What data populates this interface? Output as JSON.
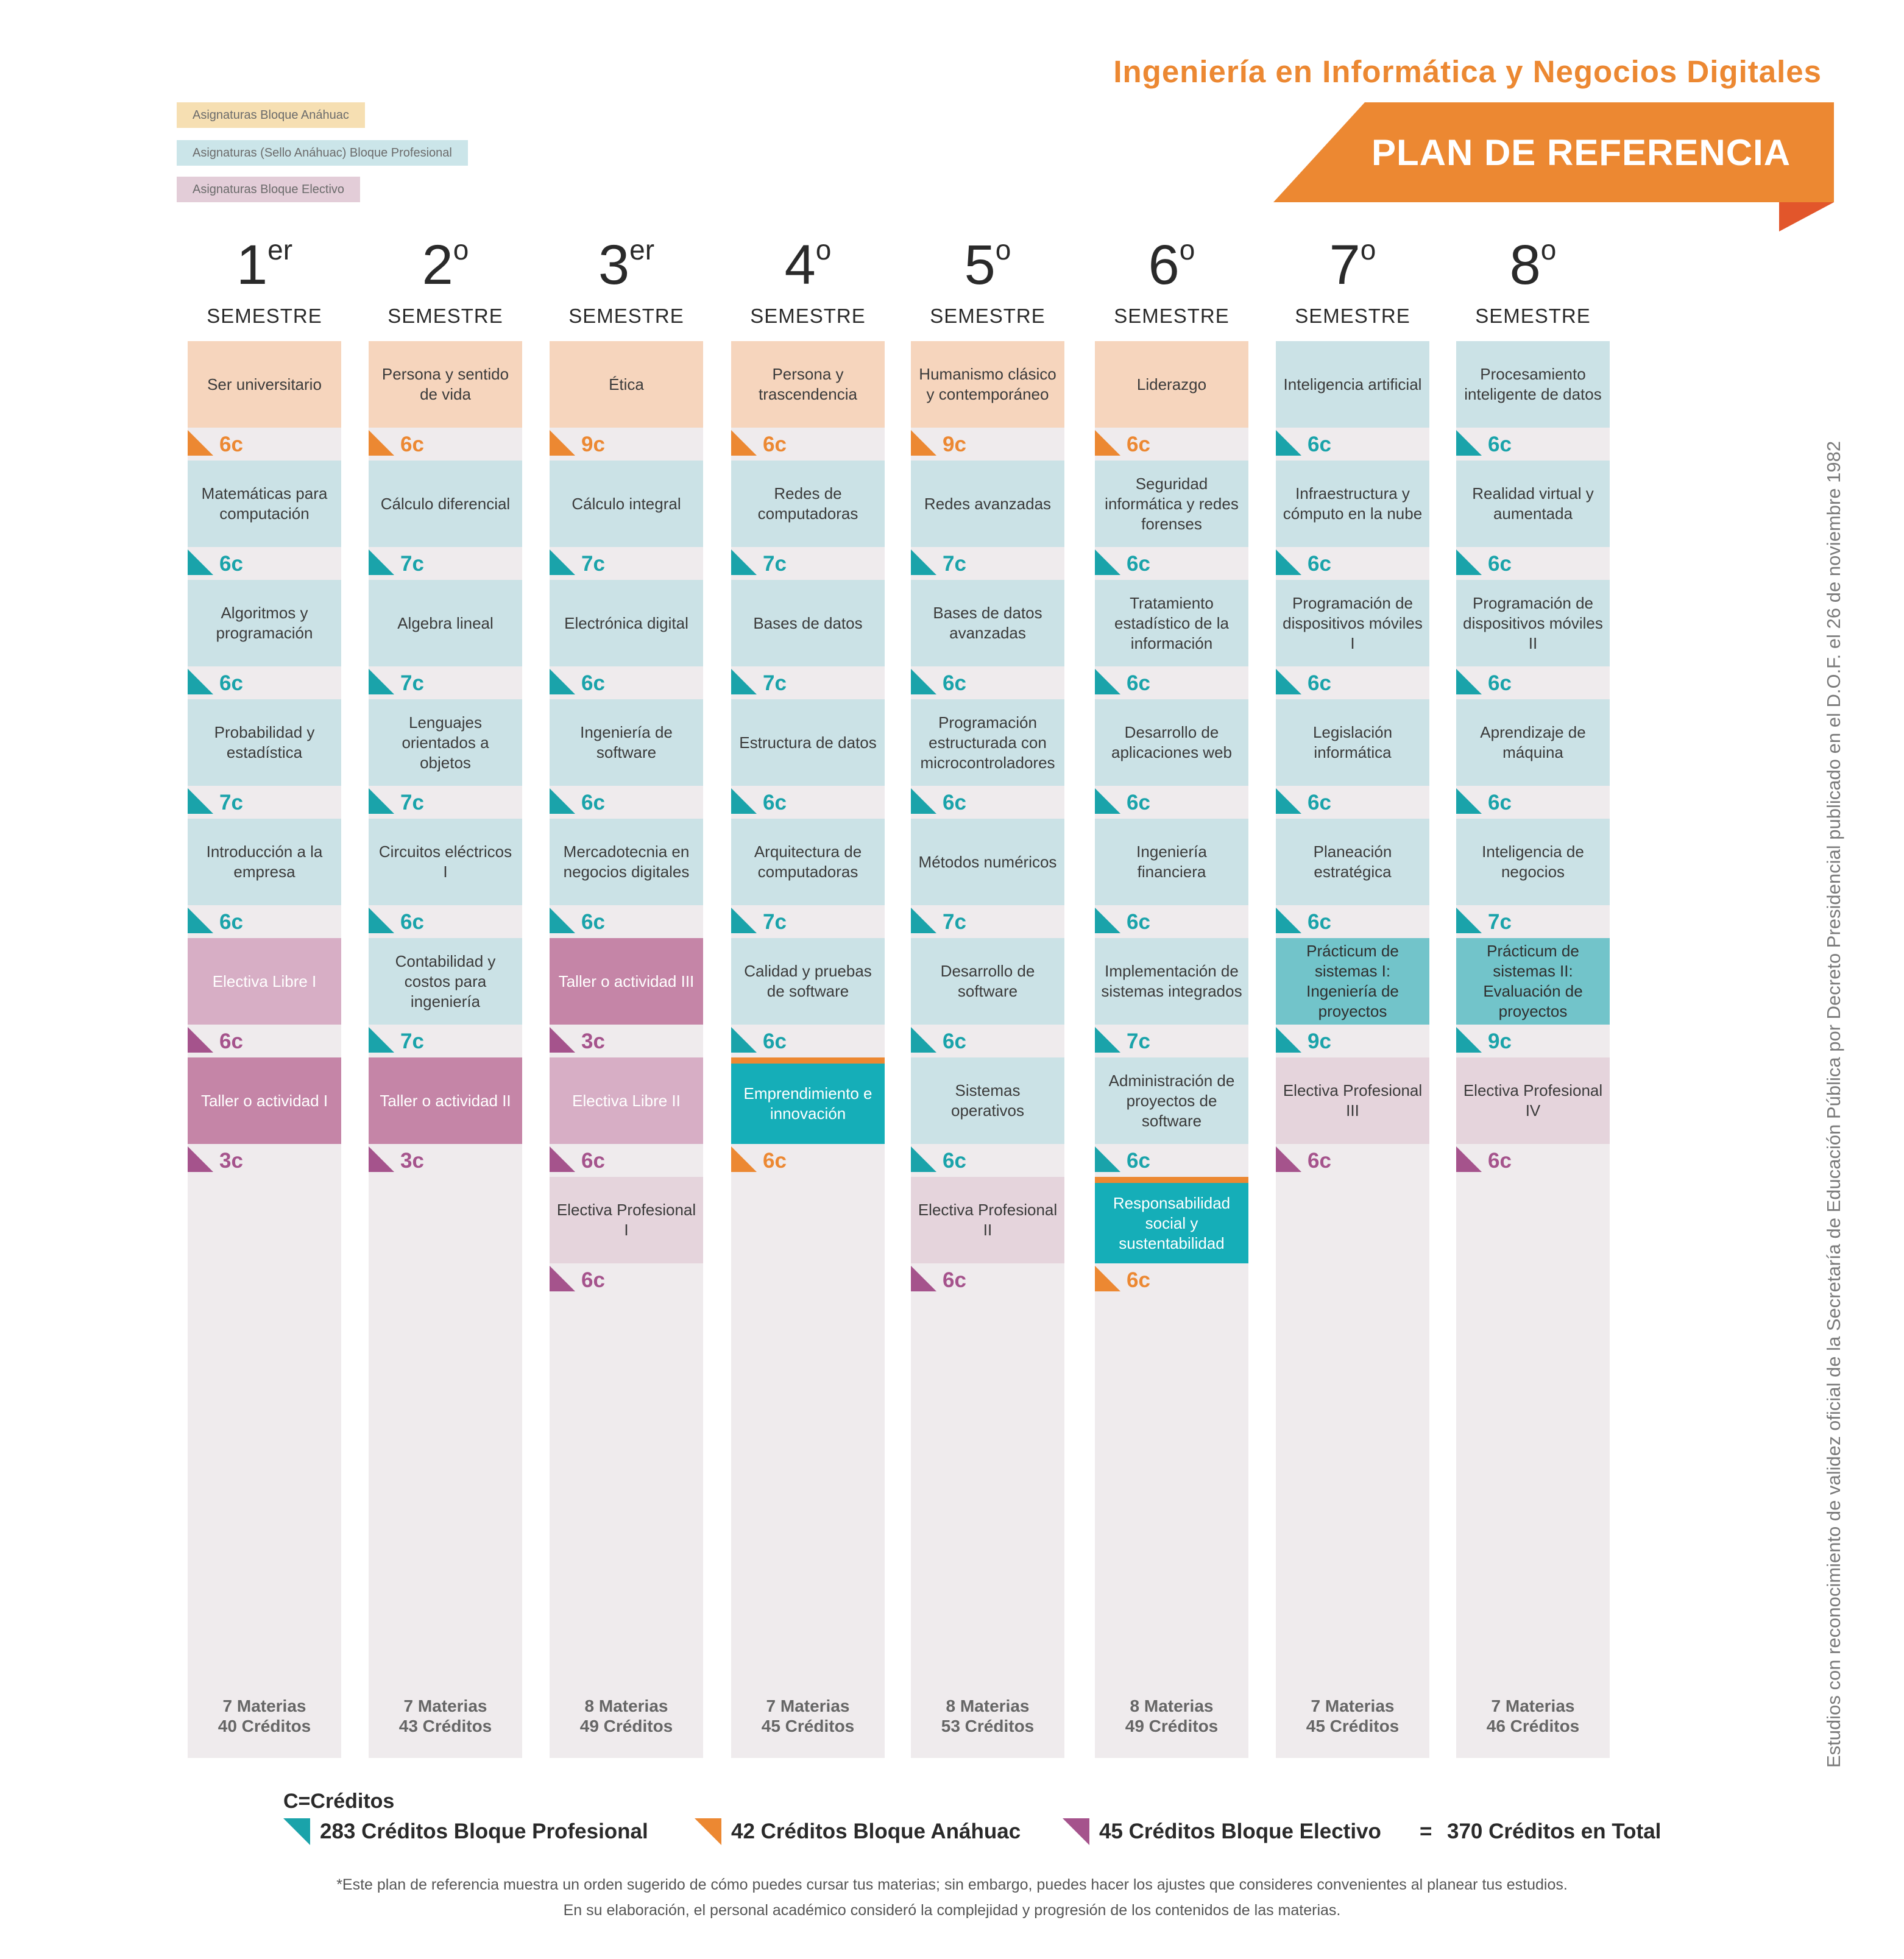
{
  "header": {
    "program_title": "Ingeniería en Informática y Negocios Digitales",
    "plan_label": "PLAN DE REFERENCIA",
    "colors": {
      "orange": "#ec8832",
      "dark_orange": "#e2562b"
    }
  },
  "legend": {
    "anahuac": "Asignaturas Bloque Anáhuac",
    "profesional": "Asignaturas (Sello Anáhuac) Bloque Profesional",
    "electivo": "Asignaturas Bloque Electivo"
  },
  "vertical_note": "Estudios con reconocimiento de validez oficial de la Secretaría de Educación Pública por Decreto Presidencial publicado en el D.O.F. el 26 de noviembre 1982",
  "semesters": [
    {
      "num": "1",
      "sup": "er",
      "label": "SEMESTRE",
      "courses": [
        {
          "name": "Ser universitario",
          "credits": "6c"
        },
        {
          "name": "Matemáticas para computación",
          "credits": "6c"
        },
        {
          "name": "Algoritmos y programación",
          "credits": "6c"
        },
        {
          "name": "Probabilidad y estadística",
          "credits": "7c"
        },
        {
          "name": "Introducción a la empresa",
          "credits": "6c"
        },
        {
          "name": "Electiva Libre I",
          "credits": "6c"
        },
        {
          "name": "Taller o actividad I",
          "credits": "3c"
        }
      ],
      "total_materias": "7 Materias",
      "total_creditos": "40 Créditos"
    },
    {
      "num": "2",
      "sup": "o",
      "label": "SEMESTRE",
      "courses": [
        {
          "name": "Persona y sentido de vida",
          "credits": "6c"
        },
        {
          "name": "Cálculo diferencial",
          "credits": "7c"
        },
        {
          "name": "Algebra lineal",
          "credits": "7c"
        },
        {
          "name": "Lenguajes orientados a objetos",
          "credits": "7c"
        },
        {
          "name": "Circuitos eléctricos I",
          "credits": "6c"
        },
        {
          "name": "Contabilidad y costos para ingeniería",
          "credits": "7c"
        },
        {
          "name": "Taller o actividad II",
          "credits": "3c"
        }
      ],
      "total_materias": "7 Materias",
      "total_creditos": "43 Créditos"
    },
    {
      "num": "3",
      "sup": "er",
      "label": "SEMESTRE",
      "courses": [
        {
          "name": "Ética",
          "credits": "9c"
        },
        {
          "name": "Cálculo integral",
          "credits": "7c"
        },
        {
          "name": "Electrónica digital",
          "credits": "6c"
        },
        {
          "name": "Ingeniería de software",
          "credits": "6c"
        },
        {
          "name": "Mercadotecnia en negocios digitales",
          "credits": "6c"
        },
        {
          "name": "Taller o actividad III",
          "credits": "3c"
        },
        {
          "name": "Electiva Libre II",
          "credits": "6c"
        },
        {
          "name": "Electiva Profesional I",
          "credits": "6c"
        }
      ],
      "total_materias": "8 Materias",
      "total_creditos": "49 Créditos"
    },
    {
      "num": "4",
      "sup": "o",
      "label": "SEMESTRE",
      "courses": [
        {
          "name": "Persona y trascendencia",
          "credits": "6c"
        },
        {
          "name": "Redes de computadoras",
          "credits": "7c"
        },
        {
          "name": "Bases de datos",
          "credits": "7c"
        },
        {
          "name": "Estructura de datos",
          "credits": "6c"
        },
        {
          "name": "Arquitectura de computadoras",
          "credits": "7c"
        },
        {
          "name": "Calidad y pruebas de software",
          "credits": "6c"
        },
        {
          "name": "Emprendimiento e innovación",
          "credits": "6c"
        }
      ],
      "total_materias": "7 Materias",
      "total_creditos": "45 Créditos"
    },
    {
      "num": "5",
      "sup": "o",
      "label": "SEMESTRE",
      "courses": [
        {
          "name": "Humanismo clásico y contemporáneo",
          "credits": "9c"
        },
        {
          "name": "Redes avanzadas",
          "credits": "7c"
        },
        {
          "name": "Bases de datos avanzadas",
          "credits": "6c"
        },
        {
          "name": "Programación estructurada con microcontroladores",
          "credits": "6c"
        },
        {
          "name": "Métodos numéricos",
          "credits": "7c"
        },
        {
          "name": "Desarrollo de software",
          "credits": "6c"
        },
        {
          "name": "Sistemas operativos",
          "credits": "6c"
        },
        {
          "name": "Electiva Profesional II",
          "credits": "6c"
        }
      ],
      "total_materias": "8 Materias",
      "total_creditos": "53 Créditos"
    },
    {
      "num": "6",
      "sup": "o",
      "label": "SEMESTRE",
      "courses": [
        {
          "name": "Liderazgo",
          "credits": "6c"
        },
        {
          "name": "Seguridad informática y redes forenses",
          "credits": "6c"
        },
        {
          "name": "Tratamiento estadístico de la información",
          "credits": "6c"
        },
        {
          "name": "Desarrollo de aplicaciones web",
          "credits": "6c"
        },
        {
          "name": "Ingeniería financiera",
          "credits": "6c"
        },
        {
          "name": "Implementación de sistemas integrados",
          "credits": "7c"
        },
        {
          "name": "Administración de proyectos de software",
          "credits": "6c"
        },
        {
          "name": "Responsabilidad social y sustentabilidad",
          "credits": "6c"
        }
      ],
      "total_materias": "8 Materias",
      "total_creditos": "49 Créditos"
    },
    {
      "num": "7",
      "sup": "o",
      "label": "SEMESTRE",
      "courses": [
        {
          "name": "Inteligencia artificial",
          "credits": "6c"
        },
        {
          "name": "Infraestructura y cómputo en la nube",
          "credits": "6c"
        },
        {
          "name": "Programación de dispositivos móviles I",
          "credits": "6c"
        },
        {
          "name": "Legislación informática",
          "credits": "6c"
        },
        {
          "name": "Planeación estratégica",
          "credits": "6c"
        },
        {
          "name": "Prácticum de sistemas I: Ingeniería de proyectos",
          "credits": "9c"
        },
        {
          "name": "Electiva Profesional III",
          "credits": "6c"
        }
      ],
      "total_materias": "7 Materias",
      "total_creditos": "45 Créditos"
    },
    {
      "num": "8",
      "sup": "o",
      "label": "SEMESTRE",
      "courses": [
        {
          "name": "Procesamiento inteligente de datos",
          "credits": "6c"
        },
        {
          "name": "Realidad virtual y aumentada",
          "credits": "6c"
        },
        {
          "name": "Programación de dispositivos móviles II",
          "credits": "6c"
        },
        {
          "name": "Aprendizaje de máquina",
          "credits": "6c"
        },
        {
          "name": "Inteligencia de negocios",
          "credits": "7c"
        },
        {
          "name": "Prácticum de sistemas II: Evaluación de proyectos",
          "credits": "9c"
        },
        {
          "name": "Electiva Profesional IV",
          "credits": "6c"
        }
      ],
      "total_materias": "7 Materias",
      "total_creditos": "46  Créditos"
    }
  ],
  "footer": {
    "c_label": "C=Créditos",
    "profesional": "283 Créditos Bloque Profesional",
    "anahuac": "42 Créditos Bloque Anáhuac",
    "electivo": "45 Créditos Bloque Electivo",
    "equals": "=",
    "total": "370 Créditos en Total",
    "note_line1": "*Este plan de referencia muestra un orden sugerido de cómo puedes cursar tus materias; sin embargo, puedes hacer los ajustes que consideres convenientes al planear tus estudios.",
    "note_line2": "En su elaboración, el personal académico consideró la complejidad y progresión de los contenidos de las materias.",
    "colors": {
      "profesional": "#1aa3aa",
      "anahuac": "#ec8832",
      "electivo": "#a5538c"
    }
  }
}
